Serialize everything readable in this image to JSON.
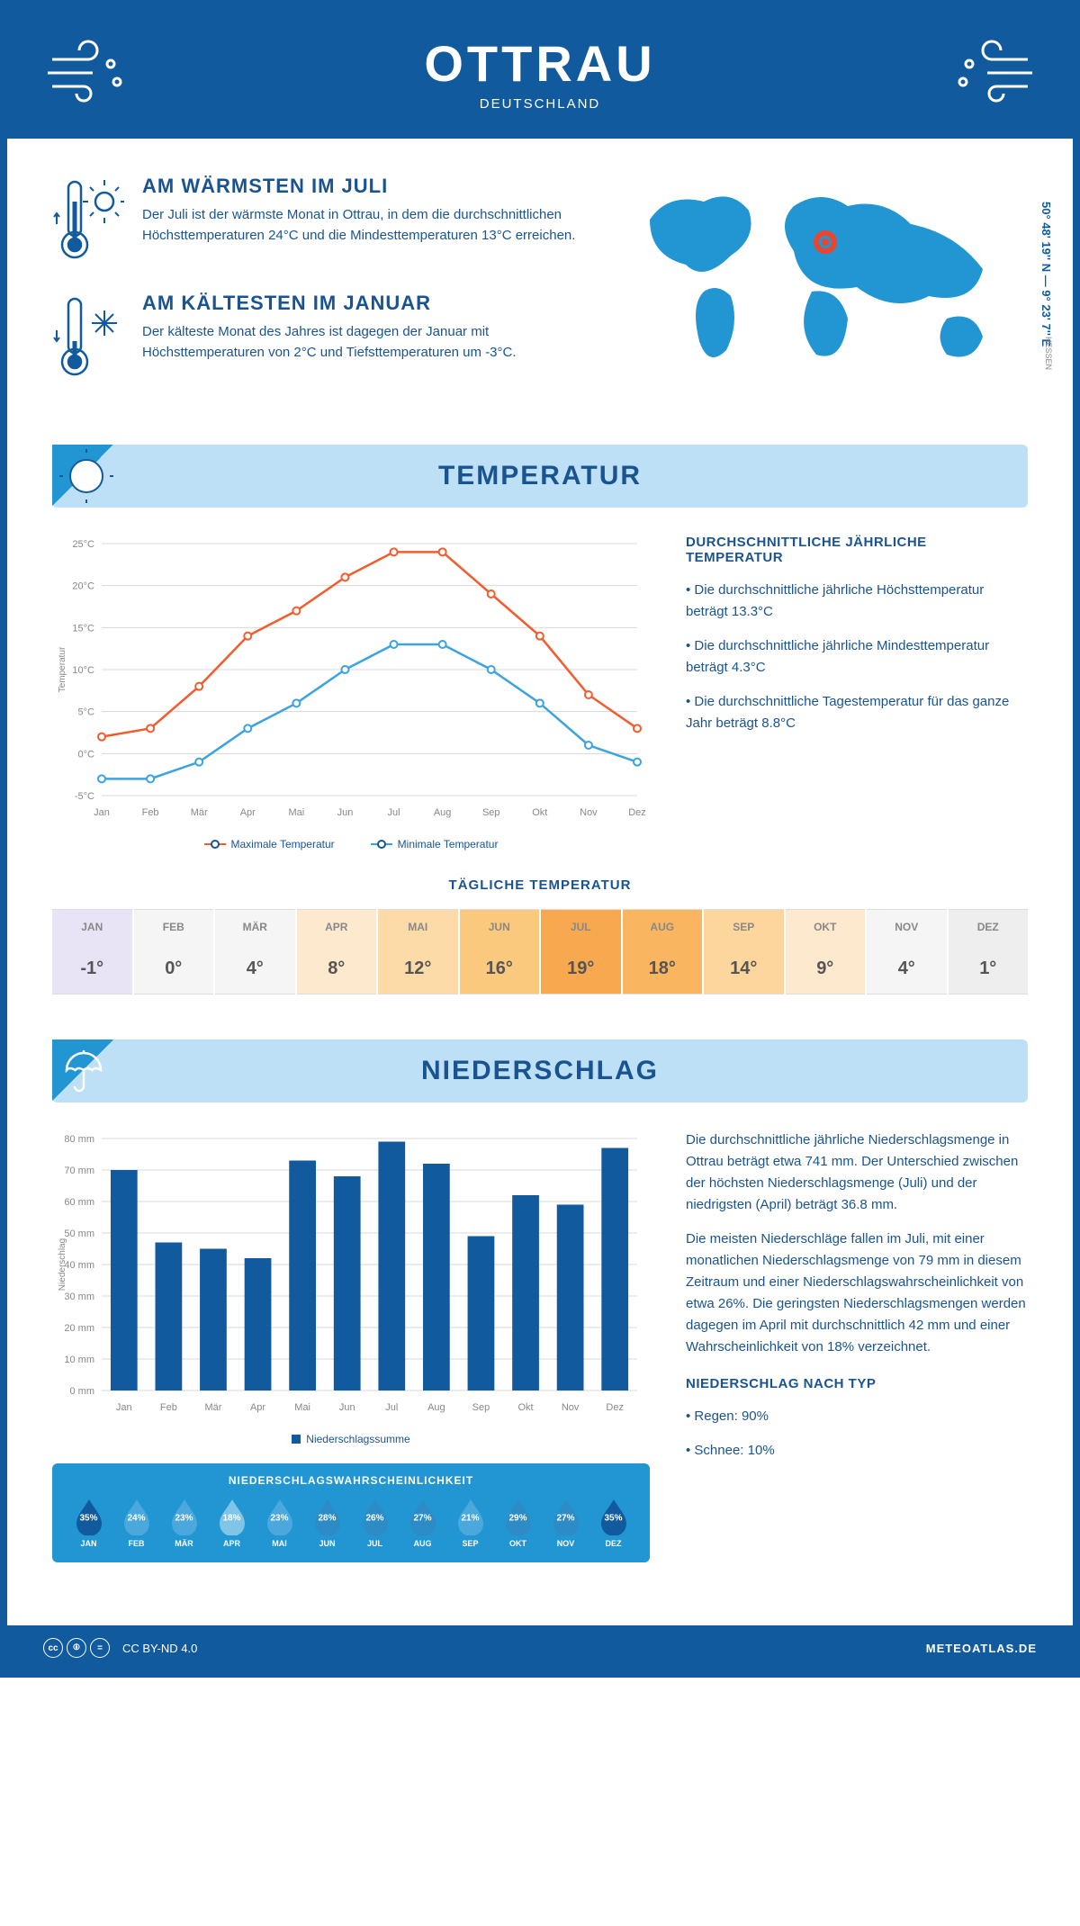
{
  "header": {
    "title": "OTTRAU",
    "subtitle": "DEUTSCHLAND"
  },
  "coords": "50° 48' 19'' N — 9° 23' 7'' E",
  "region": "HESSEN",
  "warmest": {
    "title": "AM WÄRMSTEN IM JULI",
    "text": "Der Juli ist der wärmste Monat in Ottrau, in dem die durchschnittlichen Höchsttemperaturen 24°C und die Mindesttemperaturen 13°C erreichen."
  },
  "coldest": {
    "title": "AM KÄLTESTEN IM JANUAR",
    "text": "Der kälteste Monat des Jahres ist dagegen der Januar mit Höchsttemperaturen von 2°C und Tiefsttemperaturen um -3°C."
  },
  "temp_section_title": "TEMPERATUR",
  "temp_chart": {
    "months": [
      "Jan",
      "Feb",
      "Mär",
      "Apr",
      "Mai",
      "Jun",
      "Jul",
      "Aug",
      "Sep",
      "Okt",
      "Nov",
      "Dez"
    ],
    "max_values": [
      2,
      3,
      8,
      14,
      17,
      21,
      24,
      24,
      19,
      14,
      7,
      3
    ],
    "min_values": [
      -3,
      -3,
      -1,
      3,
      6,
      10,
      13,
      13,
      10,
      6,
      1,
      -1
    ],
    "max_color": "#f25c2e",
    "min_color": "#3ba3e0",
    "ylim": [
      -5,
      25
    ],
    "ytick_step": 5,
    "ylabel": "Temperatur",
    "legend_max": "Maximale Temperatur",
    "legend_min": "Minimale Temperatur",
    "grid_color": "#d8d8d8",
    "axis_color": "#888"
  },
  "temp_side": {
    "title": "DURCHSCHNITTLICHE JÄHRLICHE TEMPERATUR",
    "b1": "• Die durchschnittliche jährliche Höchsttemperatur beträgt 13.3°C",
    "b2": "• Die durchschnittliche jährliche Mindesttemperatur beträgt 4.3°C",
    "b3": "• Die durchschnittliche Tagestemperatur für das ganze Jahr beträgt 8.8°C"
  },
  "daily_title": "TÄGLICHE TEMPERATUR",
  "daily": {
    "months": [
      "JAN",
      "FEB",
      "MÄR",
      "APR",
      "MAI",
      "JUN",
      "JUL",
      "AUG",
      "SEP",
      "OKT",
      "NOV",
      "DEZ"
    ],
    "temps": [
      "-1°",
      "0°",
      "4°",
      "8°",
      "12°",
      "16°",
      "19°",
      "18°",
      "14°",
      "9°",
      "4°",
      "1°"
    ],
    "colors": [
      "#e8e4f5",
      "#f5f5f5",
      "#f5f5f5",
      "#fde9ce",
      "#fcdba8",
      "#fbc97e",
      "#f8a94f",
      "#f9b560",
      "#fcd69c",
      "#fde9ce",
      "#f5f5f5",
      "#eeeeee"
    ]
  },
  "precip_section_title": "NIEDERSCHLAG",
  "precip_chart": {
    "months": [
      "Jan",
      "Feb",
      "Mär",
      "Apr",
      "Mai",
      "Jun",
      "Jul",
      "Aug",
      "Sep",
      "Okt",
      "Nov",
      "Dez"
    ],
    "values": [
      70,
      47,
      45,
      42,
      73,
      68,
      79,
      72,
      49,
      62,
      59,
      77
    ],
    "color": "#125a9e",
    "ylim": [
      0,
      80
    ],
    "ytick_step": 10,
    "ylabel": "Niederschlag",
    "legend": "Niederschlagssumme",
    "grid_color": "#d8d8d8"
  },
  "precip_side": {
    "p1": "Die durchschnittliche jährliche Niederschlagsmenge in Ottrau beträgt etwa 741 mm. Der Unterschied zwischen der höchsten Niederschlagsmenge (Juli) und der niedrigsten (April) beträgt 36.8 mm.",
    "p2": "Die meisten Niederschläge fallen im Juli, mit einer monatlichen Niederschlagsmenge von 79 mm in diesem Zeitraum und einer Niederschlagswahrscheinlichkeit von etwa 26%. Die geringsten Niederschlagsmengen werden dagegen im April mit durchschnittlich 42 mm und einer Wahrscheinlichkeit von 18% verzeichnet.",
    "type_title": "NIEDERSCHLAG NACH TYP",
    "type_rain": "• Regen: 90%",
    "type_snow": "• Schnee: 10%"
  },
  "prob": {
    "title": "NIEDERSCHLAGSWAHRSCHEINLICHKEIT",
    "months": [
      "JAN",
      "FEB",
      "MÄR",
      "APR",
      "MAI",
      "JUN",
      "JUL",
      "AUG",
      "SEP",
      "OKT",
      "NOV",
      "DEZ"
    ],
    "values": [
      "35%",
      "24%",
      "23%",
      "18%",
      "23%",
      "28%",
      "26%",
      "27%",
      "21%",
      "29%",
      "27%",
      "35%"
    ],
    "drop_colors": [
      "#125a9e",
      "#4aa8dc",
      "#4aa8dc",
      "#7ec5e8",
      "#4aa8dc",
      "#2d8cc6",
      "#2d8cc6",
      "#2d8cc6",
      "#4aa8dc",
      "#2d8cc6",
      "#2d8cc6",
      "#125a9e"
    ]
  },
  "footer": {
    "license": "CC BY-ND 4.0",
    "site": "METEOATLAS.DE"
  }
}
